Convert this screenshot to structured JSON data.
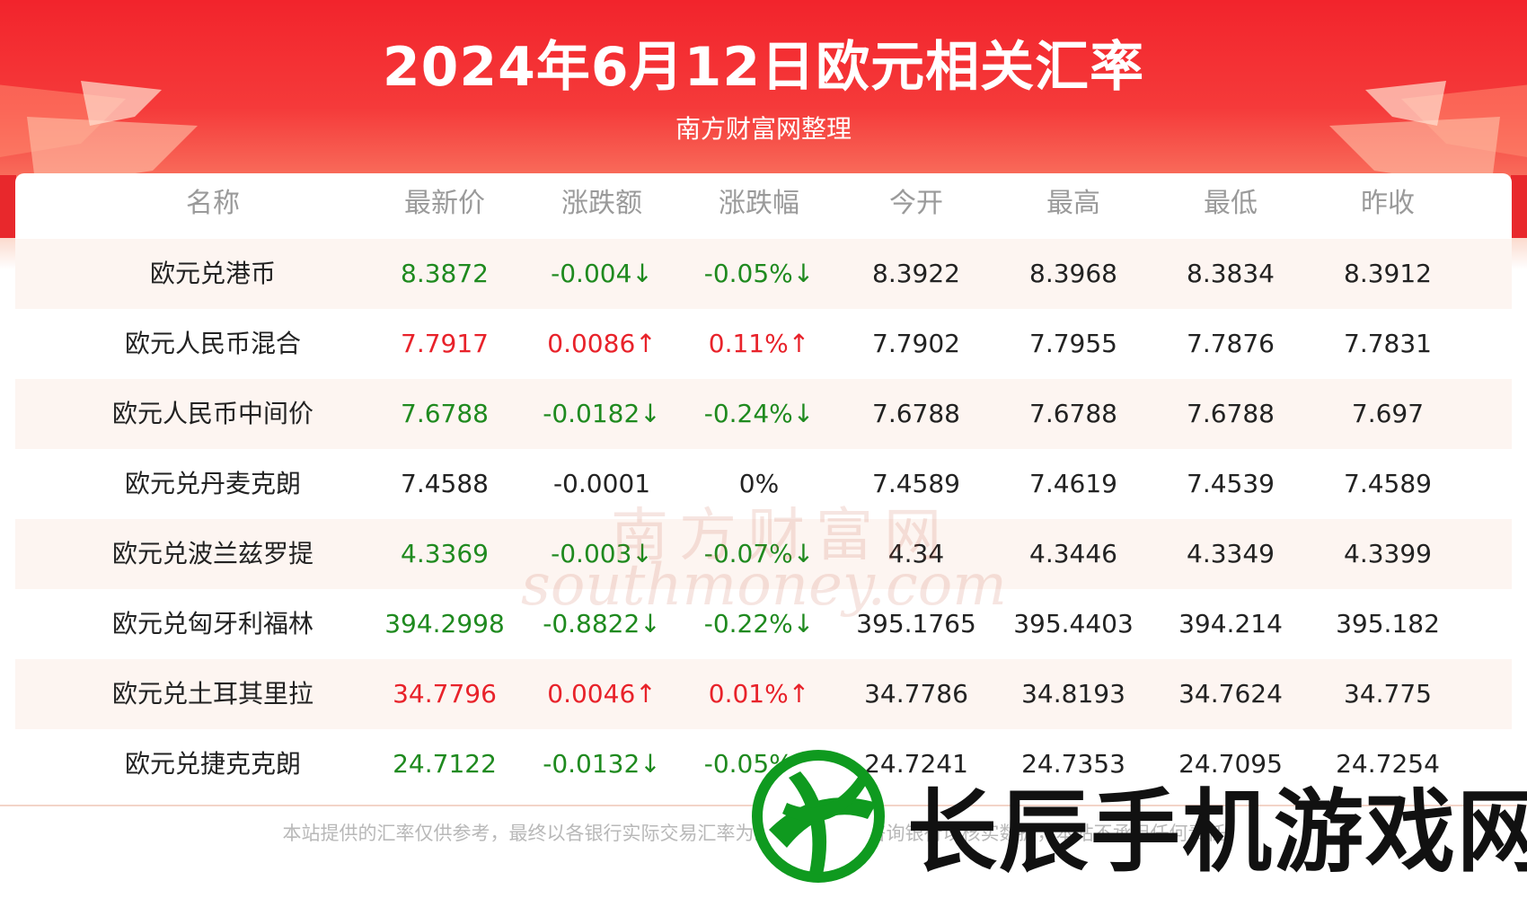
{
  "header": {
    "title": "2024年6月12日欧元相关汇率",
    "subtitle": "南方财富网整理"
  },
  "table": {
    "columns": [
      "名称",
      "最新价",
      "涨跌额",
      "涨跌幅",
      "今开",
      "最高",
      "最低",
      "昨收"
    ],
    "rows": [
      {
        "name": "欧元兑港币",
        "latest": "8.3872",
        "change": "-0.004↓",
        "pct": "-0.05%↓",
        "open": "8.3922",
        "high": "8.3968",
        "low": "8.3834",
        "prev": "8.3912",
        "trend": "down"
      },
      {
        "name": "欧元人民币混合",
        "latest": "7.7917",
        "change": "0.0086↑",
        "pct": "0.11%↑",
        "open": "7.7902",
        "high": "7.7955",
        "low": "7.7876",
        "prev": "7.7831",
        "trend": "up"
      },
      {
        "name": "欧元人民币中间价",
        "latest": "7.6788",
        "change": "-0.0182↓",
        "pct": "-0.24%↓",
        "open": "7.6788",
        "high": "7.6788",
        "low": "7.6788",
        "prev": "7.697",
        "trend": "down"
      },
      {
        "name": "欧元兑丹麦克朗",
        "latest": "7.4588",
        "change": "-0.0001",
        "pct": "0%",
        "open": "7.4589",
        "high": "7.4619",
        "low": "7.4539",
        "prev": "7.4589",
        "trend": "flat"
      },
      {
        "name": "欧元兑波兰兹罗提",
        "latest": "4.3369",
        "change": "-0.003↓",
        "pct": "-0.07%↓",
        "open": "4.34",
        "high": "4.3446",
        "low": "4.3349",
        "prev": "4.3399",
        "trend": "down"
      },
      {
        "name": "欧元兑匈牙利福林",
        "latest": "394.2998",
        "change": "-0.8822↓",
        "pct": "-0.22%↓",
        "open": "395.1765",
        "high": "395.4403",
        "low": "394.214",
        "prev": "395.182",
        "trend": "down"
      },
      {
        "name": "欧元兑土耳其里拉",
        "latest": "34.7796",
        "change": "0.0046↑",
        "pct": "0.01%↑",
        "open": "34.7786",
        "high": "34.8193",
        "low": "34.7624",
        "prev": "34.775",
        "trend": "up"
      },
      {
        "name": "欧元兑捷克克朗",
        "latest": "24.7122",
        "change": "-0.0132↓",
        "pct": "-0.05%↓",
        "open": "24.7241",
        "high": "24.7353",
        "low": "24.7095",
        "prev": "24.7254",
        "trend": "down"
      }
    ]
  },
  "footer": {
    "disclaimer": "本站提供的汇率仅供参考，最终以各银行实际交易汇率为准，使用前请咨询银行以核实数据，本站不承担任何责任。"
  },
  "watermark": {
    "cn": "南方财富网",
    "en": "southmoney.com"
  },
  "overlay_logo": {
    "text": "长辰手机游戏网"
  },
  "colors": {
    "header_red": "#f2242c",
    "up": "#e8222a",
    "down": "#1f8a1f",
    "row_alt": "#fdf5f1",
    "logo_green": "#0f9a1f"
  }
}
